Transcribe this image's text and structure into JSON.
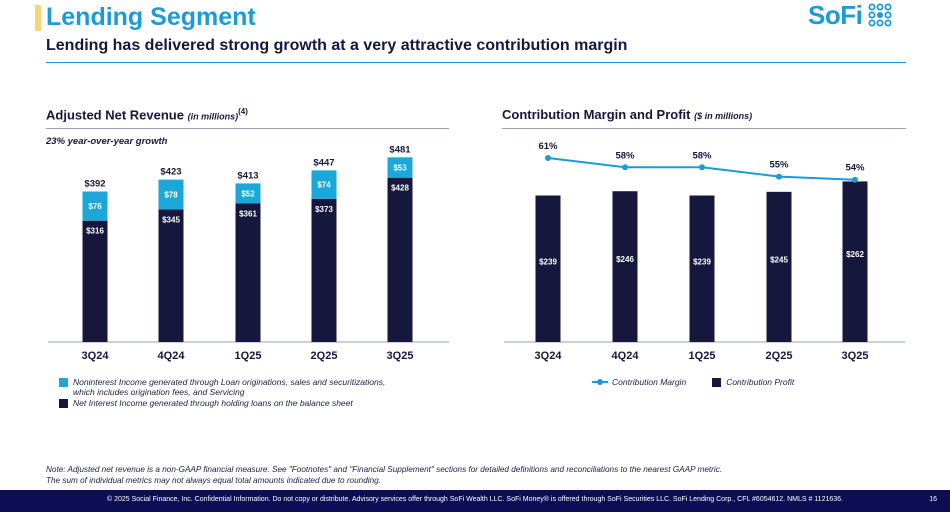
{
  "header": {
    "title": "Lending Segment",
    "subtitle": "Lending has delivered strong growth at a very attractive contribution margin",
    "logo_text": "SoFi",
    "colors": {
      "accent": "#1b9bd7",
      "navy": "#15173d",
      "light_blue": "#1ba8d8",
      "highlight": "#f9d57a"
    }
  },
  "left_chart": {
    "title": "Adjusted Net Revenue",
    "unit": "(in millions)",
    "footnote_ref": "(4)",
    "growth_note": "23% year-over-year growth",
    "legend": [
      {
        "line1": "Noninterest Income generated through Loan originations, sales and securitizations,",
        "line2": "which includes origination fees, and Servicing"
      },
      {
        "line1": "Net Interest Income generated through holding loans on the balance sheet"
      }
    ]
  },
  "right_chart": {
    "title": "Contribution Margin and Profit",
    "unit": "($ in millions)",
    "legend": {
      "line_label": "Contribution Margin",
      "bar_label": "Contribution Profit"
    }
  },
  "chart_data": [
    {
      "type": "bar",
      "stacked": true,
      "title": "Adjusted Net Revenue (in millions)",
      "categories": [
        "3Q24",
        "4Q24",
        "1Q25",
        "2Q25",
        "3Q25"
      ],
      "series": [
        {
          "name": "Net Interest Income",
          "values": [
            316,
            345,
            361,
            373,
            428
          ],
          "labels": [
            "$316",
            "$345",
            "$361",
            "$373",
            "$428"
          ],
          "color": "#15173d"
        },
        {
          "name": "Noninterest Income",
          "values": [
            76,
            78,
            52,
            74,
            53
          ],
          "labels": [
            "$76",
            "$78",
            "$52",
            "$74",
            "$53"
          ],
          "color": "#1ba8d8"
        }
      ],
      "totals": [
        "$392",
        "$423",
        "$413",
        "$447",
        "$481"
      ],
      "ylim": [
        0,
        560
      ]
    },
    {
      "type": "bar+line",
      "title": "Contribution Margin and Profit ($ in millions)",
      "categories": [
        "3Q24",
        "4Q24",
        "1Q25",
        "2Q25",
        "3Q25"
      ],
      "bars": {
        "name": "Contribution Profit",
        "values": [
          239,
          246,
          239,
          245,
          262
        ],
        "labels": [
          "$239",
          "$246",
          "$239",
          "$245",
          "$262"
        ],
        "color": "#15173d"
      },
      "line": {
        "name": "Contribution Margin",
        "values": [
          61,
          58,
          58,
          55,
          54
        ],
        "labels": [
          "61%",
          "58%",
          "58%",
          "55%",
          "54%"
        ],
        "color": "#1b9bd7"
      },
      "ylim": [
        0,
        310
      ]
    }
  ],
  "note": {
    "line1": "Note: Adjusted net revenue is a non-GAAP financial measure. See \"Footnotes\" and \"Financial Supplement\" sections for detailed definitions and reconciliations to the nearest GAAP metric.",
    "line2": "The sum of individual metrics may not always equal total amounts indicated due to rounding."
  },
  "footer": {
    "text": "© 2025 Social Finance, Inc. Confidential Information. Do not copy or distribute. Advisory services offer through SoFi Wealth LLC. SoFi Money® is offered through SoFi Securities LLC. SoFi Lending Corp., CFL #6054612. NMLS # 1121636.",
    "page": "16"
  }
}
